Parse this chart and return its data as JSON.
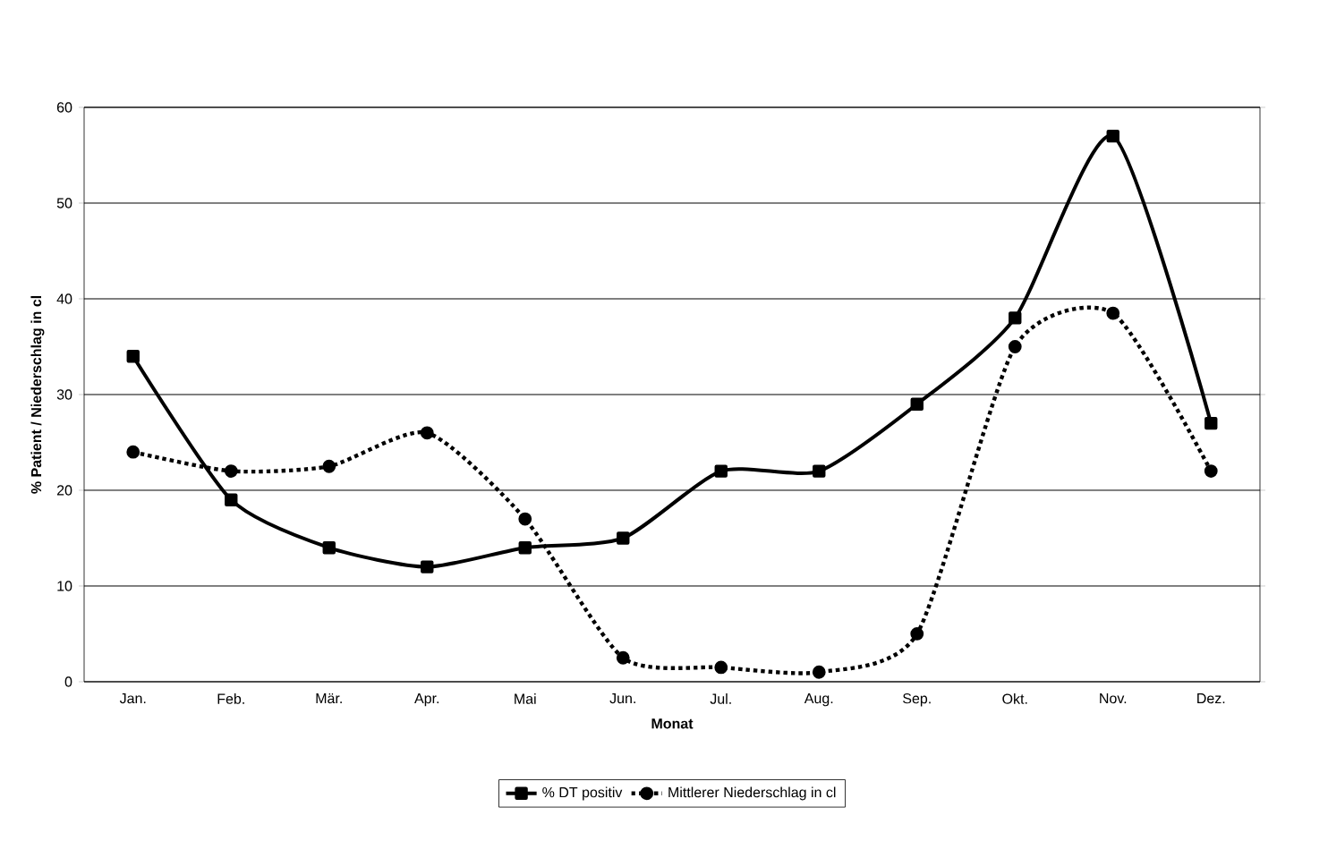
{
  "chart_data": {
    "type": "line",
    "xlabel": "Monat",
    "ylabel": "% Patient / Niederschlag in cl",
    "categories": [
      "Jan.",
      "Feb.",
      "Mär.",
      "Apr.",
      "Mai",
      "Jun.",
      "Jul.",
      "Aug.",
      "Sep.",
      "Okt.",
      "Nov.",
      "Dez."
    ],
    "series": [
      {
        "name": "% DT positiv",
        "color": "#000000",
        "marker": "square",
        "line_style": "solid",
        "values": [
          34,
          19,
          14,
          12,
          14,
          15,
          22,
          22,
          29,
          38,
          57,
          27
        ]
      },
      {
        "name": "Mittlerer Niederschlag in cl",
        "color": "#000000",
        "marker": "circle",
        "line_style": "dotted",
        "values": [
          24,
          22,
          22.5,
          26,
          17,
          2.5,
          1.5,
          1,
          5,
          35,
          38.5,
          22
        ]
      }
    ],
    "ylim": [
      0,
      60
    ],
    "yticks": [
      0,
      10,
      20,
      30,
      40,
      50,
      60
    ],
    "grid": "y",
    "legend": "bottom"
  }
}
